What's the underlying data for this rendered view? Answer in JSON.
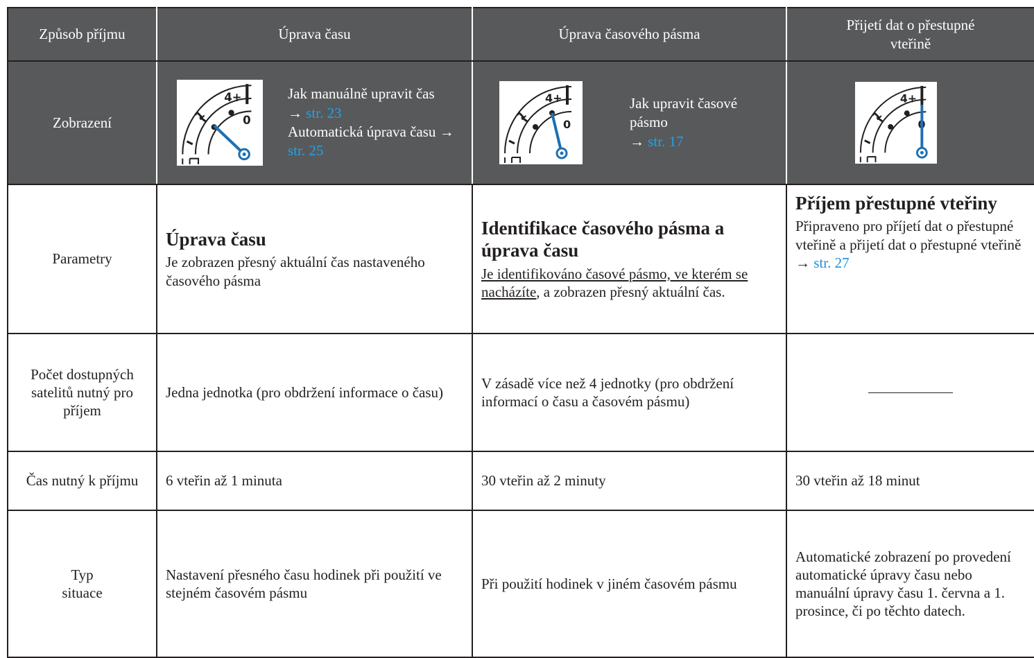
{
  "table": {
    "header": [
      "Způsob příjmu",
      "Úprava času",
      "Úprava časového pásma",
      "Přijetí dat o přestupné vteřině"
    ],
    "icon_labels": [
      "4+",
      "1",
      "0"
    ],
    "rows": [
      {
        "label": "Zobrazení",
        "cells": [
          [
            "Jak manuálně upravit čas",
            "→",
            "str. 23",
            "Automatická úprava času →",
            "str. 25"
          ],
          [
            "Jak upravit časové pásmo",
            "→",
            "str.  17"
          ]
        ]
      },
      {
        "label": "Parametry",
        "cells": [
          {
            "heading": "Úprava času",
            "text": "Je zobrazen přesný aktuální čas nastaveného časového pásma"
          },
          {
            "heading": "Identifikace časového pásma a úprava času",
            "underlined": "Je identifikováno časové pásmo, ve kterém se nacházíte",
            "text": ", a zobrazen přesný aktuální čas."
          },
          {
            "heading": "Příjem přestupné vteřiny",
            "text": "Připraveno pro příjetí dat o přestupné vteřině a přijetí dat o přestupné vteřině",
            "arrow": "→",
            "link": "str.  27"
          }
        ]
      },
      {
        "label": "Počet dostupných satelitů nutný pro příjem",
        "cells": [
          "Jedna jednotka (pro obdržení informace o času)",
          "V zásadě více než 4 jednotky (pro obdržení informací o času a časovém pásmu)"
        ]
      },
      {
        "label": "Čas nutný k příjmu",
        "cells": [
          "6 vteřin až 1 minuta",
          "30 vteřin až 2 minuty",
          "30 vteřin až 18 minut"
        ]
      },
      {
        "label": "Typ situace",
        "cells": [
          "Nastavení přesného času hodinek při použití ve stejném časovém pásmu",
          "Při použití hodinek v jiném časovém pásmu",
          "Automatické zobrazení po provedení automatické úpravy času nebo manuální úpravy času 1. června a 1. prosince, či po těchto datech."
        ]
      }
    ]
  }
}
